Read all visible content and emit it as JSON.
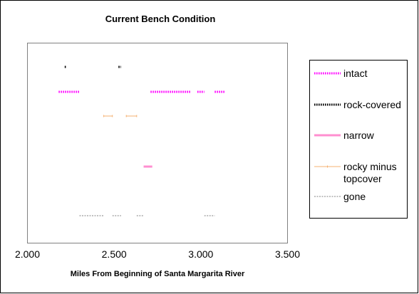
{
  "chart_data": {
    "type": "line",
    "title": "Current Bench Condition",
    "xlabel": "Miles From Beginning of Santa Margarita River",
    "ylabel": "",
    "xlim": [
      2.0,
      3.5
    ],
    "xticks": [
      "2.000",
      "2.500",
      "3.000",
      "3.500"
    ],
    "grid": false,
    "legend_position": "right",
    "series": [
      {
        "name": "intact",
        "color": "#ff00ff",
        "style": "dotted-thick",
        "level": 5,
        "segments": [
          [
            2.18,
            2.3
          ],
          [
            2.71,
            2.94
          ],
          [
            2.98,
            3.02
          ],
          [
            3.08,
            3.14
          ]
        ]
      },
      {
        "name": "rock-covered",
        "color": "#000000",
        "style": "dotted-thick",
        "level": 6,
        "segments": [
          [
            2.215,
            2.225
          ],
          [
            2.525,
            2.54
          ]
        ]
      },
      {
        "name": "narrow",
        "color": "#ff8fd0",
        "style": "solid-thick",
        "level": 2,
        "segments": [
          [
            2.67,
            2.72
          ]
        ]
      },
      {
        "name": [
          "rocky minus",
          "topcover"
        ],
        "color": "#f5b070",
        "style": "thin-markers",
        "level": 4,
        "segments": [
          [
            2.44,
            2.49
          ],
          [
            2.57,
            2.63
          ]
        ]
      },
      {
        "name": "gone",
        "color": "#808080",
        "style": "dashed-thin",
        "level": 0,
        "segments": [
          [
            2.3,
            2.44
          ],
          [
            2.49,
            2.54
          ],
          [
            2.63,
            2.67
          ],
          [
            3.02,
            3.08
          ]
        ]
      }
    ]
  }
}
